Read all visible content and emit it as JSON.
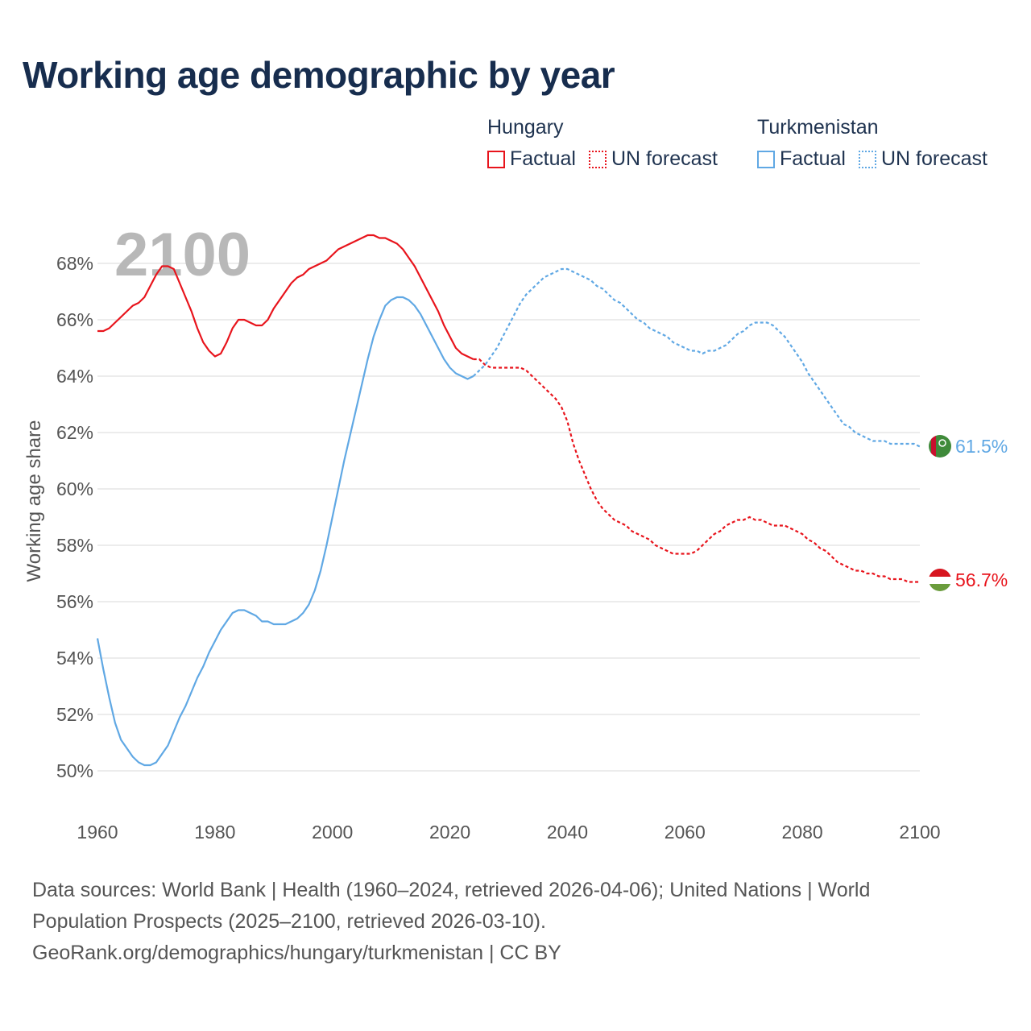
{
  "title": "Working age demographic by year",
  "year_overlay": "2100",
  "legend": {
    "groups": [
      {
        "country": "Hungary",
        "color": "#e8141c",
        "factual_label": "Factual",
        "forecast_label": "UN forecast"
      },
      {
        "country": "Turkmenistan",
        "color": "#60a8e4",
        "factual_label": "Factual",
        "forecast_label": "UN forecast"
      }
    ]
  },
  "footer": {
    "line1": "Data sources: World Bank | Health (1960–2024, retrieved 2026-04-06); United Nations | World",
    "line2": "Population Prospects (2025–2100, retrieved 2026-03-10).",
    "line3": "GeoRank.org/demographics/hungary/turkmenistan | CC BY"
  },
  "chart_data": {
    "type": "line",
    "title": "Working age demographic by year",
    "xlabel": "",
    "ylabel": "Working age share",
    "xlim": [
      1960,
      2100
    ],
    "ylim": [
      49,
      70
    ],
    "x_ticks": [
      1960,
      1980,
      2000,
      2020,
      2040,
      2060,
      2080,
      2100
    ],
    "y_ticks": [
      50,
      52,
      54,
      56,
      58,
      60,
      62,
      64,
      66,
      68
    ],
    "y_tick_suffix": "%",
    "grid": true,
    "series": [
      {
        "name": "Hungary",
        "color": "#e8141c",
        "end_label": "56.7%",
        "flag": "hungary-flag",
        "factual": [
          [
            1960,
            65.6
          ],
          [
            1961,
            65.6
          ],
          [
            1962,
            65.7
          ],
          [
            1963,
            65.9
          ],
          [
            1964,
            66.1
          ],
          [
            1965,
            66.3
          ],
          [
            1966,
            66.5
          ],
          [
            1967,
            66.6
          ],
          [
            1968,
            66.8
          ],
          [
            1969,
            67.2
          ],
          [
            1970,
            67.6
          ],
          [
            1971,
            67.9
          ],
          [
            1972,
            67.9
          ],
          [
            1973,
            67.8
          ],
          [
            1974,
            67.3
          ],
          [
            1975,
            66.8
          ],
          [
            1976,
            66.3
          ],
          [
            1977,
            65.7
          ],
          [
            1978,
            65.2
          ],
          [
            1979,
            64.9
          ],
          [
            1980,
            64.7
          ],
          [
            1981,
            64.8
          ],
          [
            1982,
            65.2
          ],
          [
            1983,
            65.7
          ],
          [
            1984,
            66.0
          ],
          [
            1985,
            66.0
          ],
          [
            1986,
            65.9
          ],
          [
            1987,
            65.8
          ],
          [
            1988,
            65.8
          ],
          [
            1989,
            66.0
          ],
          [
            1990,
            66.4
          ],
          [
            1991,
            66.7
          ],
          [
            1992,
            67.0
          ],
          [
            1993,
            67.3
          ],
          [
            1994,
            67.5
          ],
          [
            1995,
            67.6
          ],
          [
            1996,
            67.8
          ],
          [
            1997,
            67.9
          ],
          [
            1998,
            68.0
          ],
          [
            1999,
            68.1
          ],
          [
            2000,
            68.3
          ],
          [
            2001,
            68.5
          ],
          [
            2002,
            68.6
          ],
          [
            2003,
            68.7
          ],
          [
            2004,
            68.8
          ],
          [
            2005,
            68.9
          ],
          [
            2006,
            69.0
          ],
          [
            2007,
            69.0
          ],
          [
            2008,
            68.9
          ],
          [
            2009,
            68.9
          ],
          [
            2010,
            68.8
          ],
          [
            2011,
            68.7
          ],
          [
            2012,
            68.5
          ],
          [
            2013,
            68.2
          ],
          [
            2014,
            67.9
          ],
          [
            2015,
            67.5
          ],
          [
            2016,
            67.1
          ],
          [
            2017,
            66.7
          ],
          [
            2018,
            66.3
          ],
          [
            2019,
            65.8
          ],
          [
            2020,
            65.4
          ],
          [
            2021,
            65.0
          ],
          [
            2022,
            64.8
          ],
          [
            2023,
            64.7
          ],
          [
            2024,
            64.6
          ]
        ],
        "forecast": [
          [
            2024,
            64.6
          ],
          [
            2025,
            64.6
          ],
          [
            2026,
            64.4
          ],
          [
            2027,
            64.3
          ],
          [
            2028,
            64.3
          ],
          [
            2030,
            64.3
          ],
          [
            2032,
            64.3
          ],
          [
            2033,
            64.2
          ],
          [
            2034,
            64.0
          ],
          [
            2035,
            63.8
          ],
          [
            2036,
            63.6
          ],
          [
            2037,
            63.4
          ],
          [
            2038,
            63.2
          ],
          [
            2039,
            62.9
          ],
          [
            2040,
            62.4
          ],
          [
            2041,
            61.6
          ],
          [
            2042,
            61.0
          ],
          [
            2043,
            60.5
          ],
          [
            2044,
            60.0
          ],
          [
            2045,
            59.6
          ],
          [
            2046,
            59.3
          ],
          [
            2047,
            59.1
          ],
          [
            2048,
            58.9
          ],
          [
            2049,
            58.8
          ],
          [
            2050,
            58.7
          ],
          [
            2051,
            58.5
          ],
          [
            2052,
            58.4
          ],
          [
            2053,
            58.3
          ],
          [
            2054,
            58.2
          ],
          [
            2055,
            58.0
          ],
          [
            2056,
            57.9
          ],
          [
            2057,
            57.8
          ],
          [
            2058,
            57.7
          ],
          [
            2060,
            57.7
          ],
          [
            2061,
            57.7
          ],
          [
            2062,
            57.8
          ],
          [
            2063,
            58.0
          ],
          [
            2064,
            58.2
          ],
          [
            2065,
            58.4
          ],
          [
            2066,
            58.5
          ],
          [
            2067,
            58.7
          ],
          [
            2068,
            58.8
          ],
          [
            2069,
            58.9
          ],
          [
            2070,
            58.9
          ],
          [
            2071,
            59.0
          ],
          [
            2072,
            58.9
          ],
          [
            2073,
            58.9
          ],
          [
            2074,
            58.8
          ],
          [
            2075,
            58.7
          ],
          [
            2076,
            58.7
          ],
          [
            2077,
            58.7
          ],
          [
            2078,
            58.6
          ],
          [
            2079,
            58.5
          ],
          [
            2080,
            58.4
          ],
          [
            2081,
            58.2
          ],
          [
            2082,
            58.1
          ],
          [
            2083,
            57.9
          ],
          [
            2084,
            57.8
          ],
          [
            2085,
            57.6
          ],
          [
            2086,
            57.4
          ],
          [
            2087,
            57.3
          ],
          [
            2088,
            57.2
          ],
          [
            2089,
            57.1
          ],
          [
            2090,
            57.1
          ],
          [
            2091,
            57.0
          ],
          [
            2092,
            57.0
          ],
          [
            2093,
            56.9
          ],
          [
            2094,
            56.9
          ],
          [
            2095,
            56.8
          ],
          [
            2096,
            56.8
          ],
          [
            2097,
            56.8
          ],
          [
            2098,
            56.7
          ],
          [
            2099,
            56.7
          ],
          [
            2100,
            56.7
          ]
        ]
      },
      {
        "name": "Turkmenistan",
        "color": "#60a8e4",
        "end_label": "61.5%",
        "flag": "turkmenistan-flag",
        "factual": [
          [
            1960,
            54.7
          ],
          [
            1961,
            53.6
          ],
          [
            1962,
            52.6
          ],
          [
            1963,
            51.7
          ],
          [
            1964,
            51.1
          ],
          [
            1965,
            50.8
          ],
          [
            1966,
            50.5
          ],
          [
            1967,
            50.3
          ],
          [
            1968,
            50.2
          ],
          [
            1969,
            50.2
          ],
          [
            1970,
            50.3
          ],
          [
            1971,
            50.6
          ],
          [
            1972,
            50.9
          ],
          [
            1973,
            51.4
          ],
          [
            1974,
            51.9
          ],
          [
            1975,
            52.3
          ],
          [
            1976,
            52.8
          ],
          [
            1977,
            53.3
          ],
          [
            1978,
            53.7
          ],
          [
            1979,
            54.2
          ],
          [
            1980,
            54.6
          ],
          [
            1981,
            55.0
          ],
          [
            1982,
            55.3
          ],
          [
            1983,
            55.6
          ],
          [
            1984,
            55.7
          ],
          [
            1985,
            55.7
          ],
          [
            1986,
            55.6
          ],
          [
            1987,
            55.5
          ],
          [
            1988,
            55.3
          ],
          [
            1989,
            55.3
          ],
          [
            1990,
            55.2
          ],
          [
            1991,
            55.2
          ],
          [
            1992,
            55.2
          ],
          [
            1993,
            55.3
          ],
          [
            1994,
            55.4
          ],
          [
            1995,
            55.6
          ],
          [
            1996,
            55.9
          ],
          [
            1997,
            56.4
          ],
          [
            1998,
            57.1
          ],
          [
            1999,
            58.0
          ],
          [
            2000,
            59.0
          ],
          [
            2001,
            60.0
          ],
          [
            2002,
            61.0
          ],
          [
            2003,
            61.9
          ],
          [
            2004,
            62.8
          ],
          [
            2005,
            63.7
          ],
          [
            2006,
            64.6
          ],
          [
            2007,
            65.4
          ],
          [
            2008,
            66.0
          ],
          [
            2009,
            66.5
          ],
          [
            2010,
            66.7
          ],
          [
            2011,
            66.8
          ],
          [
            2012,
            66.8
          ],
          [
            2013,
            66.7
          ],
          [
            2014,
            66.5
          ],
          [
            2015,
            66.2
          ],
          [
            2016,
            65.8
          ],
          [
            2017,
            65.4
          ],
          [
            2018,
            65.0
          ],
          [
            2019,
            64.6
          ],
          [
            2020,
            64.3
          ],
          [
            2021,
            64.1
          ],
          [
            2022,
            64.0
          ],
          [
            2023,
            63.9
          ],
          [
            2024,
            64.0
          ]
        ],
        "forecast": [
          [
            2024,
            64.0
          ],
          [
            2025,
            64.2
          ],
          [
            2026,
            64.4
          ],
          [
            2027,
            64.7
          ],
          [
            2028,
            65.0
          ],
          [
            2029,
            65.4
          ],
          [
            2030,
            65.8
          ],
          [
            2031,
            66.2
          ],
          [
            2032,
            66.6
          ],
          [
            2033,
            66.9
          ],
          [
            2034,
            67.1
          ],
          [
            2035,
            67.3
          ],
          [
            2036,
            67.5
          ],
          [
            2037,
            67.6
          ],
          [
            2038,
            67.7
          ],
          [
            2039,
            67.8
          ],
          [
            2040,
            67.8
          ],
          [
            2041,
            67.7
          ],
          [
            2042,
            67.6
          ],
          [
            2043,
            67.5
          ],
          [
            2044,
            67.4
          ],
          [
            2045,
            67.2
          ],
          [
            2046,
            67.1
          ],
          [
            2047,
            66.9
          ],
          [
            2048,
            66.7
          ],
          [
            2049,
            66.6
          ],
          [
            2050,
            66.4
          ],
          [
            2051,
            66.2
          ],
          [
            2052,
            66.0
          ],
          [
            2053,
            65.9
          ],
          [
            2054,
            65.7
          ],
          [
            2055,
            65.6
          ],
          [
            2056,
            65.5
          ],
          [
            2057,
            65.4
          ],
          [
            2058,
            65.2
          ],
          [
            2059,
            65.1
          ],
          [
            2060,
            65.0
          ],
          [
            2061,
            64.9
          ],
          [
            2062,
            64.9
          ],
          [
            2063,
            64.8
          ],
          [
            2064,
            64.9
          ],
          [
            2065,
            64.9
          ],
          [
            2066,
            65.0
          ],
          [
            2067,
            65.1
          ],
          [
            2068,
            65.3
          ],
          [
            2069,
            65.5
          ],
          [
            2070,
            65.6
          ],
          [
            2071,
            65.8
          ],
          [
            2072,
            65.9
          ],
          [
            2073,
            65.9
          ],
          [
            2074,
            65.9
          ],
          [
            2075,
            65.8
          ],
          [
            2076,
            65.6
          ],
          [
            2077,
            65.4
          ],
          [
            2078,
            65.1
          ],
          [
            2079,
            64.8
          ],
          [
            2080,
            64.5
          ],
          [
            2081,
            64.1
          ],
          [
            2082,
            63.8
          ],
          [
            2083,
            63.5
          ],
          [
            2084,
            63.2
          ],
          [
            2085,
            62.9
          ],
          [
            2086,
            62.6
          ],
          [
            2087,
            62.3
          ],
          [
            2088,
            62.2
          ],
          [
            2089,
            62.0
          ],
          [
            2090,
            61.9
          ],
          [
            2091,
            61.8
          ],
          [
            2092,
            61.7
          ],
          [
            2093,
            61.7
          ],
          [
            2094,
            61.7
          ],
          [
            2095,
            61.6
          ],
          [
            2096,
            61.6
          ],
          [
            2097,
            61.6
          ],
          [
            2098,
            61.6
          ],
          [
            2099,
            61.6
          ],
          [
            2100,
            61.5
          ]
        ]
      }
    ]
  }
}
